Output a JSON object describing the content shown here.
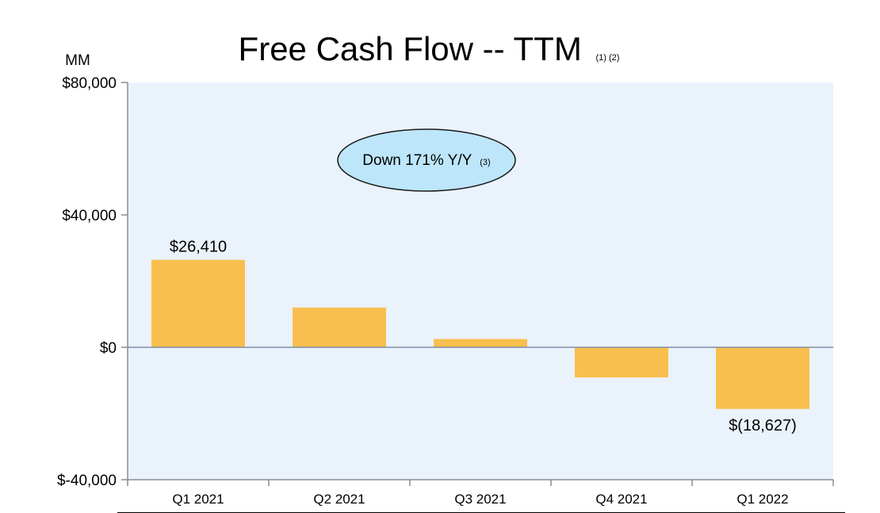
{
  "chart_data": {
    "type": "bar",
    "title": "Free Cash Flow -- TTM",
    "title_note": "(1) (2)",
    "unit_label": "MM",
    "categories": [
      "Q1 2021",
      "Q2 2021",
      "Q3 2021",
      "Q4 2021",
      "Q1 2022"
    ],
    "values": [
      26410,
      12000,
      2500,
      -9100,
      -18627
    ],
    "data_labels": [
      "$26,410",
      "",
      "",
      "",
      "$(18,627)"
    ],
    "ylim": [
      -40000,
      80000
    ],
    "yticks": [
      80000,
      40000,
      0,
      -40000
    ],
    "ytick_labels": [
      "$80,000",
      "$40,000",
      "$0",
      "$-40,000"
    ],
    "callout": {
      "text": "Down 171% Y/Y",
      "note": "(3)"
    },
    "colors": {
      "bar": "#F9BF4E",
      "plot_bg": "#EAF2FC",
      "axis": "#8C8C8C",
      "zero_line": "#7F8FA6",
      "callout_fill": "#BDE6FA",
      "callout_stroke": "#1A1A1A"
    },
    "grid": false,
    "legend": "none"
  }
}
